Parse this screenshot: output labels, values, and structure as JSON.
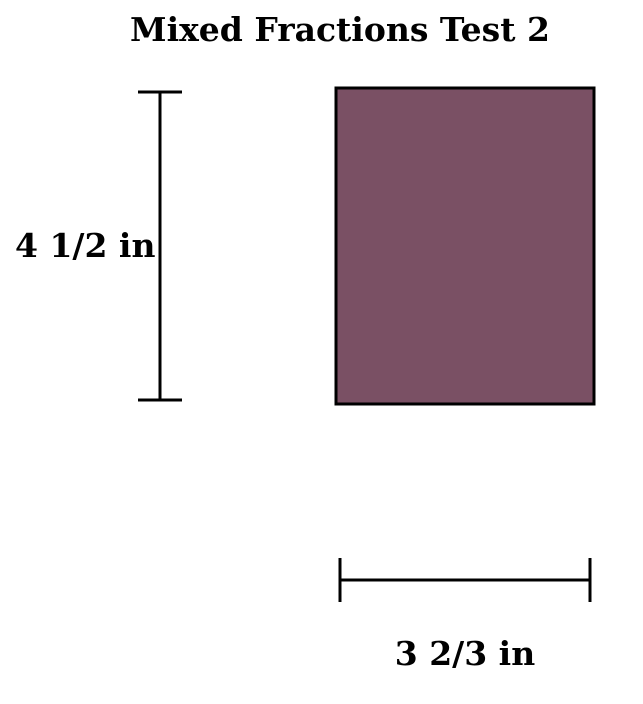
{
  "title": "Mixed Fractions Test 2",
  "shape": {
    "kind": "rectangle",
    "fill_color": "#7a5064",
    "stroke_color": "#000000"
  },
  "dimensions": {
    "height_label": "4 1/2 in",
    "width_label": "3 2/3 in"
  }
}
